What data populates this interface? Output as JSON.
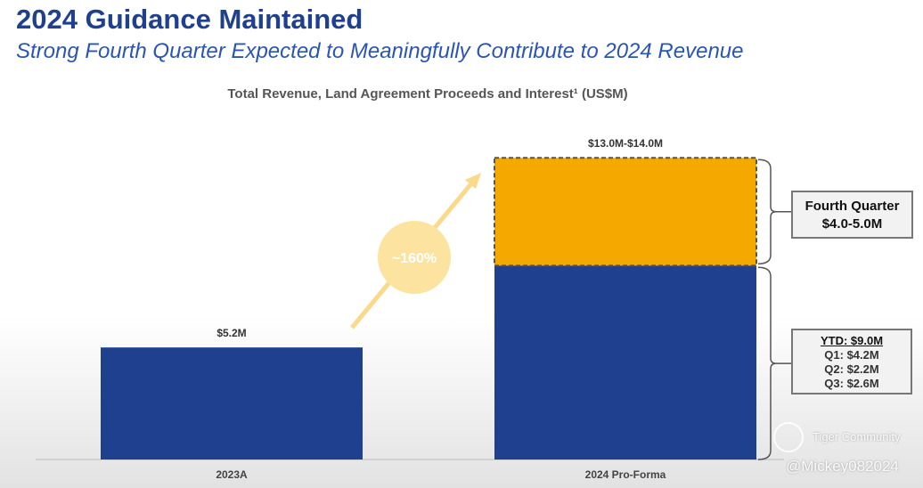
{
  "header": {
    "title": "2024 Guidance Maintained",
    "subtitle": "Strong Fourth Quarter Expected to Meaningfully Contribute to 2024 Revenue"
  },
  "chart_data": {
    "type": "bar",
    "title": "Total Revenue, Land Agreement Proceeds and Interest¹ (US$M)",
    "categories": [
      "2023A",
      "2024 Pro-Forma"
    ],
    "series": [
      {
        "name": "YTD",
        "values": [
          5.2,
          9.0
        ],
        "color": "#1f3f8f"
      },
      {
        "name": "Fourth Quarter",
        "values": [
          0,
          5.0
        ],
        "color": "#f5a800",
        "range_low": 4.0,
        "dashed": true
      }
    ],
    "data_labels": [
      "$5.2M",
      "$13.0M-$14.0M"
    ],
    "growth_annotation": "~160%",
    "ylim": [
      0,
      14.5
    ],
    "grid": false
  },
  "callouts": {
    "q4": {
      "title": "Fourth Quarter",
      "value": "$4.0-5.0M"
    },
    "ytd": {
      "title": "YTD: $9.0M",
      "q1": "Q1: $4.2M",
      "q2": "Q2: $2.2M",
      "q3": "Q3: $2.6M"
    }
  },
  "watermark": {
    "brand": "Tiger Community",
    "user": "@Mickey082024"
  }
}
